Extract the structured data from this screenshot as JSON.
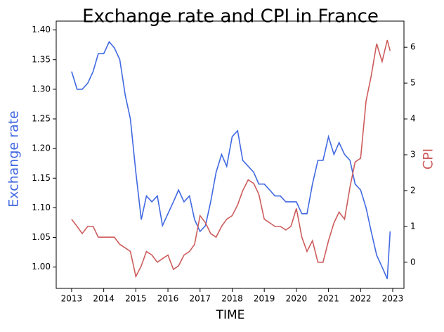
{
  "chart_data": {
    "type": "line",
    "title": "Exchange rate and CPI in France",
    "x_label": "TIME",
    "y_label": "Exchange rate",
    "y2_label": "CPI",
    "x": [
      2013.0,
      2013.17,
      2013.33,
      2013.5,
      2013.67,
      2013.83,
      2014.0,
      2014.17,
      2014.33,
      2014.5,
      2014.67,
      2014.83,
      2015.0,
      2015.17,
      2015.33,
      2015.5,
      2015.67,
      2015.83,
      2016.0,
      2016.17,
      2016.33,
      2016.5,
      2016.67,
      2016.83,
      2017.0,
      2017.17,
      2017.33,
      2017.5,
      2017.67,
      2017.83,
      2018.0,
      2018.17,
      2018.33,
      2018.5,
      2018.67,
      2018.83,
      2019.0,
      2019.17,
      2019.33,
      2019.5,
      2019.67,
      2019.83,
      2020.0,
      2020.17,
      2020.33,
      2020.5,
      2020.67,
      2020.83,
      2021.0,
      2021.17,
      2021.33,
      2021.5,
      2021.67,
      2021.83,
      2022.0,
      2022.17,
      2022.33,
      2022.5,
      2022.67,
      2022.83,
      2022.92
    ],
    "series": [
      {
        "name": "Exchange rate",
        "color": "#4169e1",
        "axis": "y",
        "values": [
          1.33,
          1.3,
          1.3,
          1.31,
          1.33,
          1.36,
          1.36,
          1.38,
          1.37,
          1.35,
          1.29,
          1.25,
          1.16,
          1.08,
          1.12,
          1.11,
          1.12,
          1.07,
          1.09,
          1.11,
          1.13,
          1.11,
          1.12,
          1.08,
          1.06,
          1.07,
          1.11,
          1.16,
          1.19,
          1.17,
          1.22,
          1.23,
          1.18,
          1.17,
          1.16,
          1.14,
          1.14,
          1.13,
          1.12,
          1.12,
          1.11,
          1.11,
          1.11,
          1.09,
          1.09,
          1.14,
          1.18,
          1.18,
          1.22,
          1.19,
          1.21,
          1.19,
          1.18,
          1.14,
          1.13,
          1.1,
          1.06,
          1.02,
          1.0,
          0.98,
          1.06
        ]
      },
      {
        "name": "CPI",
        "color": "#cd5c5c",
        "axis": "y2",
        "values": [
          1.2,
          1.0,
          0.8,
          1.0,
          1.0,
          0.7,
          0.7,
          0.7,
          0.7,
          0.5,
          0.4,
          0.3,
          -0.4,
          -0.1,
          0.3,
          0.2,
          0.0,
          0.1,
          0.2,
          -0.2,
          -0.1,
          0.2,
          0.3,
          0.5,
          1.3,
          1.1,
          0.8,
          0.7,
          1.0,
          1.2,
          1.3,
          1.6,
          2.0,
          2.3,
          2.2,
          1.9,
          1.2,
          1.1,
          1.0,
          1.0,
          0.9,
          1.0,
          1.5,
          0.7,
          0.3,
          0.6,
          0.0,
          0.0,
          0.6,
          1.1,
          1.4,
          1.2,
          2.1,
          2.8,
          2.9,
          4.5,
          5.2,
          6.1,
          5.6,
          6.2,
          5.9
        ]
      }
    ],
    "xlim": [
      2012.52,
      2023.35
    ],
    "xticks": [
      2013,
      2014,
      2015,
      2016,
      2017,
      2018,
      2019,
      2020,
      2021,
      2022,
      2023
    ],
    "ylim": [
      0.964,
      1.415
    ],
    "yticks": [
      {
        "value": 1,
        "label": "1.00"
      },
      1.05,
      {
        "value": 1.1,
        "label": "1.10"
      },
      1.15,
      {
        "value": 1.2,
        "label": "1.20"
      },
      1.25,
      {
        "value": 1.3,
        "label": "1.30"
      },
      1.35,
      {
        "value": 1.4,
        "label": "1.40"
      }
    ],
    "y2lim": [
      -0.73,
      6.73
    ],
    "y2ticks": [
      0,
      1,
      2,
      3,
      4,
      5,
      6
    ],
    "grid": false
  }
}
